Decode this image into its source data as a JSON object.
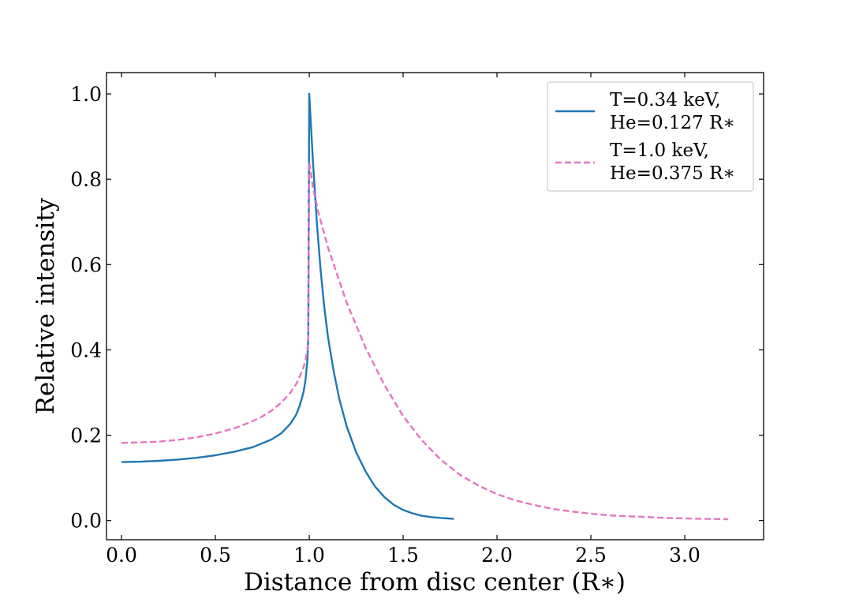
{
  "chart_data": {
    "type": "line",
    "title": "",
    "xlabel": "Distance from disc center (R∗)",
    "ylabel": "Relative intensity",
    "xlim": [
      -0.08,
      3.42
    ],
    "ylim": [
      -0.045,
      1.05
    ],
    "x_ticks": [
      0.0,
      0.5,
      1.0,
      1.5,
      2.0,
      2.5,
      3.0
    ],
    "x_tick_labels": [
      "0.0",
      "0.5",
      "1.0",
      "1.5",
      "2.0",
      "2.5",
      "3.0"
    ],
    "y_ticks": [
      0.0,
      0.2,
      0.4,
      0.6,
      0.8,
      1.0
    ],
    "y_tick_labels": [
      "0.0",
      "0.2",
      "0.4",
      "0.6",
      "0.8",
      "1.0"
    ],
    "legend_position": "top-right",
    "series": [
      {
        "name": "T=0.34 keV, He=0.127 R∗",
        "legend_lines": [
          "T=0.34 keV,",
          "He=0.127 R∗"
        ],
        "color": "#1f77b4",
        "style": "solid",
        "x": [
          0.0,
          0.1,
          0.2,
          0.3,
          0.4,
          0.5,
          0.6,
          0.7,
          0.8,
          0.85,
          0.9,
          0.93,
          0.95,
          0.97,
          0.98,
          0.99,
          0.995,
          1.0,
          1.01,
          1.02,
          1.04,
          1.06,
          1.08,
          1.1,
          1.13,
          1.16,
          1.2,
          1.25,
          1.3,
          1.35,
          1.4,
          1.45,
          1.5,
          1.55,
          1.6,
          1.65,
          1.7,
          1.77
        ],
        "y": [
          0.137,
          0.138,
          0.14,
          0.143,
          0.147,
          0.153,
          0.161,
          0.172,
          0.19,
          0.204,
          0.227,
          0.248,
          0.27,
          0.302,
          0.33,
          0.375,
          0.43,
          1.0,
          0.92,
          0.84,
          0.7,
          0.59,
          0.5,
          0.43,
          0.35,
          0.285,
          0.22,
          0.16,
          0.115,
          0.08,
          0.055,
          0.037,
          0.025,
          0.017,
          0.011,
          0.008,
          0.006,
          0.004
        ]
      },
      {
        "name": "T=1.0 keV, He=0.375 R∗",
        "legend_lines": [
          "T=1.0 keV,",
          "He=0.375 R∗"
        ],
        "color": "#e377c2",
        "style": "dashed",
        "x": [
          0.0,
          0.1,
          0.2,
          0.3,
          0.4,
          0.5,
          0.6,
          0.7,
          0.75,
          0.8,
          0.85,
          0.9,
          0.93,
          0.95,
          0.97,
          0.98,
          0.99,
          0.995,
          1.0,
          1.02,
          1.05,
          1.1,
          1.15,
          1.2,
          1.3,
          1.4,
          1.5,
          1.6,
          1.7,
          1.8,
          1.9,
          2.0,
          2.1,
          2.2,
          2.3,
          2.4,
          2.5,
          2.6,
          2.7,
          2.8,
          2.9,
          3.0,
          3.1,
          3.23
        ],
        "y": [
          0.182,
          0.183,
          0.185,
          0.189,
          0.195,
          0.204,
          0.216,
          0.233,
          0.244,
          0.258,
          0.276,
          0.3,
          0.32,
          0.338,
          0.36,
          0.376,
          0.4,
          0.43,
          0.84,
          0.78,
          0.72,
          0.64,
          0.575,
          0.51,
          0.405,
          0.318,
          0.245,
          0.188,
          0.143,
          0.108,
          0.082,
          0.062,
          0.047,
          0.036,
          0.027,
          0.021,
          0.016,
          0.012,
          0.01,
          0.008,
          0.006,
          0.005,
          0.004,
          0.003
        ]
      }
    ]
  }
}
